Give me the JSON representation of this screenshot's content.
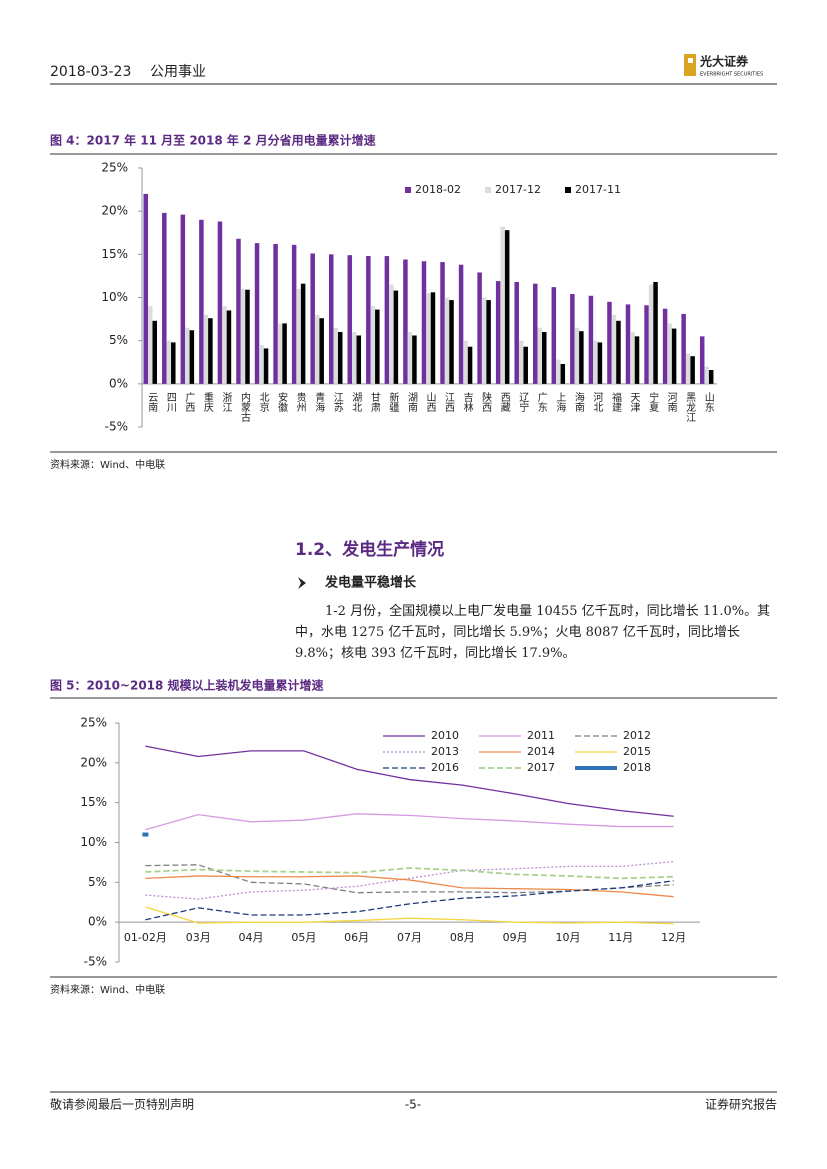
{
  "header": {
    "date": "2018-03-23",
    "sector": "公用事业",
    "logo": "光大证券",
    "logo_en": "EVERBRIGHT SECURITIES"
  },
  "chart_data": [
    {
      "type": "bar",
      "title": "图 4：2017 年 11 月至 2018 年 2 月分省用电量累计增速",
      "source": "资料来源：Wind、中电联",
      "categories": [
        "云南",
        "四川",
        "广西",
        "重庆",
        "浙江",
        "内蒙古",
        "北京",
        "安徽",
        "贵州",
        "青海",
        "江苏",
        "湖北",
        "甘肃",
        "新疆",
        "湖南",
        "山西",
        "江西",
        "吉林",
        "陕西",
        "西藏",
        "辽宁",
        "广东",
        "上海",
        "海南",
        "河北",
        "福建",
        "天津",
        "宁夏",
        "河南",
        "黑龙江",
        "山东"
      ],
      "series": [
        {
          "name": "2018-02",
          "color": "#7030a0",
          "values": [
            22,
            19.8,
            19.6,
            19,
            18.8,
            16.8,
            16.3,
            16.2,
            16.1,
            15.1,
            15,
            14.9,
            14.8,
            14.8,
            14.4,
            14.2,
            14.1,
            13.8,
            12.9,
            11.9,
            11.8,
            11.6,
            11.2,
            10.4,
            10.2,
            9.5,
            9.2,
            9.1,
            8.7,
            8.1,
            5.5
          ]
        },
        {
          "name": "2017-12",
          "color": "#dcdcdc",
          "values": [
            9,
            5,
            6.5,
            8,
            9,
            11,
            4.5,
            7,
            11,
            8,
            6.5,
            6,
            9,
            11.5,
            6,
            10.5,
            10,
            5,
            10,
            18.2,
            5,
            6.5,
            2.8,
            6.5,
            5,
            8,
            6,
            11.5,
            7,
            3.5,
            2
          ]
        },
        {
          "name": "2017-11",
          "color": "#000000",
          "values": [
            7.3,
            4.8,
            6.2,
            7.6,
            8.5,
            10.9,
            4.1,
            7,
            11.6,
            7.6,
            6,
            5.6,
            8.6,
            10.8,
            5.6,
            10.6,
            9.7,
            4.3,
            9.7,
            17.8,
            4.3,
            6,
            2.3,
            6.1,
            4.8,
            7.3,
            5.5,
            11.8,
            6.4,
            3.2,
            1.6
          ]
        }
      ],
      "ylim": [
        -5,
        25
      ],
      "yticks": [
        {
          "value": -5,
          "label": "-5%"
        },
        {
          "value": 0,
          "label": "0%"
        },
        {
          "value": 5,
          "label": "5%"
        },
        {
          "value": 10,
          "label": "10%"
        },
        {
          "value": 15,
          "label": "15%"
        },
        {
          "value": 20,
          "label": "20%"
        },
        {
          "value": 25,
          "label": "25%"
        }
      ],
      "grid": false,
      "legend": "top-right"
    },
    {
      "type": "line",
      "title": "图 5：2010~2018 规模以上装机发电量累计增速",
      "source": "资料来源：Wind、中电联",
      "categories": [
        "01-02月",
        "03月",
        "04月",
        "05月",
        "06月",
        "07月",
        "08月",
        "09月",
        "10月",
        "11月",
        "12月"
      ],
      "series": [
        {
          "name": "2010",
          "color": "#7030a0",
          "dash": "solid",
          "width": 1.3,
          "values": [
            22.1,
            20.8,
            21.5,
            21.5,
            19.2,
            17.9,
            17.2,
            16.1,
            14.9,
            14,
            13.3
          ]
        },
        {
          "name": "2011",
          "color": "#d79be3",
          "dash": "solid",
          "width": 1.3,
          "values": [
            11.6,
            13.5,
            12.6,
            12.8,
            13.6,
            13.4,
            13,
            12.7,
            12.3,
            12,
            12
          ]
        },
        {
          "name": "2012",
          "color": "#7f7f7f",
          "dash": "dashed",
          "width": 1.3,
          "values": [
            7.1,
            7.2,
            5,
            4.8,
            3.7,
            3.8,
            3.8,
            3.7,
            3.9,
            4.3,
            4.7
          ]
        },
        {
          "name": "2013",
          "color": "#b98fcf",
          "dash": "dotted",
          "width": 1.3,
          "values": [
            3.4,
            2.9,
            3.8,
            4,
            4.5,
            5.5,
            6.5,
            6.7,
            7,
            7,
            7.6
          ]
        },
        {
          "name": "2014",
          "color": "#ee8a4c",
          "dash": "solid",
          "width": 1.3,
          "values": [
            5.5,
            5.8,
            5.7,
            5.7,
            5.8,
            5.3,
            4.3,
            4.2,
            4.1,
            3.8,
            3.2
          ]
        },
        {
          "name": "2015",
          "color": "#f5d63d",
          "dash": "solid",
          "width": 1.3,
          "values": [
            1.9,
            -0.1,
            0,
            0,
            0.2,
            0.5,
            0.3,
            0,
            -0.1,
            0,
            -0.2
          ]
        },
        {
          "name": "2016",
          "color": "#1f3a7a",
          "dash": "dashed",
          "width": 1.3,
          "values": [
            0.3,
            1.8,
            0.9,
            0.9,
            1.3,
            2.3,
            3,
            3.3,
            3.9,
            4.3,
            5.2
          ]
        },
        {
          "name": "2017",
          "color": "#a9d18e",
          "dash": "dashed",
          "width": 1.8,
          "values": [
            6.3,
            6.6,
            6.4,
            6.3,
            6.2,
            6.8,
            6.5,
            6,
            5.8,
            5.5,
            5.7
          ]
        },
        {
          "name": "2018",
          "color": "#2e75b6",
          "dash": "solid",
          "width": 4,
          "values": [
            11,
            null,
            null,
            null,
            null,
            null,
            null,
            null,
            null,
            null,
            null
          ]
        }
      ],
      "ylim": [
        -5,
        25
      ],
      "yticks": [
        {
          "value": -5,
          "label": "-5%"
        },
        {
          "value": 0,
          "label": "0%"
        },
        {
          "value": 5,
          "label": "5%"
        },
        {
          "value": 10,
          "label": "10%"
        },
        {
          "value": 15,
          "label": "15%"
        },
        {
          "value": 20,
          "label": "20%"
        },
        {
          "value": 25,
          "label": "25%"
        }
      ],
      "grid": false,
      "legend": "top-right"
    }
  ],
  "section": {
    "heading": "1.2、发电生产情况",
    "subheading": "发电量平稳增长",
    "paragraph": "1-2 月份，全国规模以上电厂发电量 10455 亿千瓦时，同比增长 11.0%。其中，水电 1275 亿千瓦时，同比增长 5.9%；火电 8087 亿千瓦时，同比增长 9.8%；核电 393 亿千瓦时，同比增长 17.9%。"
  },
  "footer": {
    "left": "敬请参阅最后一页特别声明",
    "page": "-5-",
    "right": "证券研究报告"
  }
}
